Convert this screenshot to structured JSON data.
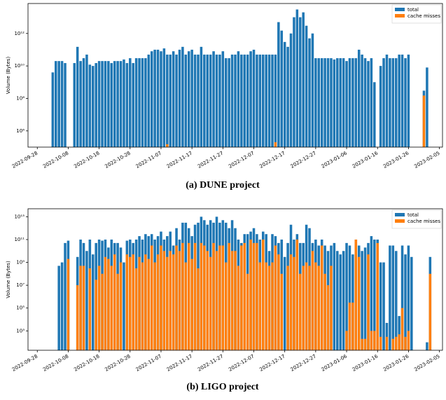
{
  "chart_data": [
    {
      "type": "bar",
      "log": true,
      "caption": "(a) DUNE project",
      "ylabel": "Volume (Bytes)",
      "legend": "upper right",
      "x": [
        "2022-10-03",
        "2022-10-04",
        "2022-10-05",
        "2022-10-06",
        "2022-10-07",
        "2022-10-08",
        "2022-10-09",
        "2022-10-10",
        "2022-10-11",
        "2022-10-12",
        "2022-10-13",
        "2022-10-14",
        "2022-10-15",
        "2022-10-16",
        "2022-10-17",
        "2022-10-18",
        "2022-10-19",
        "2022-10-20",
        "2022-10-21",
        "2022-10-22",
        "2022-10-23",
        "2022-10-24",
        "2022-10-25",
        "2022-10-26",
        "2022-10-27",
        "2022-10-28",
        "2022-10-29",
        "2022-10-30",
        "2022-10-31",
        "2022-11-01",
        "2022-11-02",
        "2022-11-03",
        "2022-11-04",
        "2022-11-05",
        "2022-11-06",
        "2022-11-07",
        "2022-11-08",
        "2022-11-09",
        "2022-11-10",
        "2022-11-11",
        "2022-11-12",
        "2022-11-13",
        "2022-11-14",
        "2022-11-15",
        "2022-11-16",
        "2022-11-17",
        "2022-11-18",
        "2022-11-19",
        "2022-11-20",
        "2022-11-21",
        "2022-11-22",
        "2022-11-23",
        "2022-11-24",
        "2022-11-25",
        "2022-11-26",
        "2022-11-27",
        "2022-11-28",
        "2022-11-29",
        "2022-11-30",
        "2022-12-01",
        "2022-12-02",
        "2022-12-03",
        "2022-12-04",
        "2022-12-05",
        "2022-12-06",
        "2022-12-07",
        "2022-12-08",
        "2022-12-09",
        "2022-12-10",
        "2022-12-11",
        "2022-12-12",
        "2022-12-13",
        "2022-12-14",
        "2022-12-15",
        "2022-12-16",
        "2022-12-17",
        "2022-12-18",
        "2022-12-19",
        "2022-12-20",
        "2022-12-21",
        "2022-12-22",
        "2022-12-23",
        "2022-12-24",
        "2022-12-25",
        "2022-12-26",
        "2022-12-27",
        "2022-12-28",
        "2022-12-29",
        "2022-12-30",
        "2022-12-31",
        "2023-01-01",
        "2023-01-02",
        "2023-01-03",
        "2023-01-04",
        "2023-01-05",
        "2023-01-06",
        "2023-01-07",
        "2023-01-08",
        "2023-01-09",
        "2023-01-10",
        "2023-01-11",
        "2023-01-12",
        "2023-01-13",
        "2023-01-14",
        "2023-01-15",
        "2023-01-16",
        "2023-01-17",
        "2023-01-18",
        "2023-01-19",
        "2023-01-20",
        "2023-01-21",
        "2023-01-22",
        "2023-01-23",
        "2023-01-24",
        "2023-01-25",
        "2023-01-26",
        "2023-01-27",
        "2023-01-28",
        "2023-01-29",
        "2023-01-30",
        "2023-01-31",
        "2023-02-01",
        "2023-02-02"
      ],
      "series": [
        {
          "name": "total",
          "color": "#1f77b4",
          "values": [
            4000000000.0,
            20000000000.0,
            20000000000.0,
            20000000000.0,
            15000000000.0,
            null,
            null,
            15000000000.0,
            150000000000.0,
            20000000000.0,
            30000000000.0,
            50000000000.0,
            12000000000.0,
            10000000000.0,
            15000000000.0,
            20000000000.0,
            20000000000.0,
            20000000000.0,
            20000000000.0,
            15000000000.0,
            20000000000.0,
            20000000000.0,
            20000000000.0,
            25000000000.0,
            15000000000.0,
            30000000000.0,
            15000000000.0,
            30000000000.0,
            30000000000.0,
            30000000000.0,
            30000000000.0,
            50000000000.0,
            80000000000.0,
            100000000000.0,
            100000000000.0,
            80000000000.0,
            120000000000.0,
            50000000000.0,
            50000000000.0,
            80000000000.0,
            50000000000.0,
            100000000000.0,
            150000000000.0,
            50000000000.0,
            80000000000.0,
            100000000000.0,
            50000000000.0,
            50000000000.0,
            150000000000.0,
            50000000000.0,
            50000000000.0,
            50000000000.0,
            80000000000.0,
            50000000000.0,
            50000000000.0,
            80000000000.0,
            30000000000.0,
            30000000000.0,
            50000000000.0,
            50000000000.0,
            80000000000.0,
            50000000000.0,
            50000000000.0,
            50000000000.0,
            80000000000.0,
            100000000000.0,
            50000000000.0,
            50000000000.0,
            50000000000.0,
            50000000000.0,
            50000000000.0,
            50000000000.0,
            50000000000.0,
            5000000000000.0,
            1500000000000.0,
            300000000000.0,
            150000000000.0,
            1000000000000.0,
            10000000000000.0,
            30000000000000.0,
            10000000000000.0,
            20000000000000.0,
            3000000000000.0,
            500000000000.0,
            1000000000000.0,
            30000000000.0,
            30000000000.0,
            30000000000.0,
            30000000000.0,
            30000000000.0,
            30000000000.0,
            25000000000.0,
            30000000000.0,
            30000000000.0,
            30000000000.0,
            20000000000.0,
            30000000000.0,
            30000000000.0,
            30000000000.0,
            100000000000.0,
            50000000000.0,
            30000000000.0,
            20000000000.0,
            30000000000.0,
            1000000000.0,
            null,
            10000000000.0,
            30000000000.0,
            50000000000.0,
            30000000000.0,
            30000000000.0,
            30000000000.0,
            50000000000.0,
            50000000000.0,
            30000000000.0,
            50000000000.0,
            null,
            null,
            null,
            null,
            300000000.0,
            8000000000.0,
            null
          ]
        },
        {
          "name": "cache misses",
          "color": "#ff7f0e",
          "values": [
            null,
            null,
            null,
            null,
            null,
            null,
            null,
            null,
            null,
            null,
            null,
            null,
            null,
            null,
            null,
            null,
            null,
            null,
            null,
            null,
            null,
            null,
            null,
            null,
            null,
            null,
            null,
            null,
            null,
            null,
            null,
            null,
            null,
            null,
            null,
            null,
            null,
            150000.0,
            null,
            null,
            null,
            null,
            null,
            null,
            null,
            null,
            null,
            null,
            null,
            null,
            null,
            null,
            null,
            null,
            null,
            null,
            null,
            null,
            null,
            null,
            null,
            null,
            null,
            null,
            null,
            null,
            null,
            null,
            null,
            null,
            null,
            null,
            200000.0,
            null,
            null,
            null,
            null,
            null,
            null,
            null,
            null,
            null,
            null,
            null,
            null,
            null,
            null,
            null,
            null,
            null,
            null,
            null,
            null,
            null,
            null,
            null,
            null,
            null,
            null,
            null,
            null,
            null,
            null,
            null,
            null,
            null,
            null,
            null,
            null,
            null,
            null,
            null,
            null,
            null,
            null,
            null,
            null,
            null,
            null,
            null,
            150000000.0,
            null,
            null
          ]
        }
      ],
      "xlim": [
        "2022-09-25",
        "2023-02-06"
      ],
      "xticks": [
        "2022-09-28",
        "2022-10-08",
        "2022-10-18",
        "2022-10-28",
        "2022-11-07",
        "2022-11-17",
        "2022-11-27",
        "2022-12-07",
        "2022-12-17",
        "2022-12-27",
        "2023-01-06",
        "2023-01-16",
        "2023-01-26",
        "2023-02-05"
      ],
      "ylim": [
        100000.0,
        70000000000000.0
      ],
      "yticks": [
        {
          "value": 1000000.0,
          "label": "10⁶"
        },
        {
          "value": 100000000.0,
          "label": "10⁸"
        },
        {
          "value": 10000000000.0,
          "label": "10¹⁰"
        },
        {
          "value": 1000000000000.0,
          "label": "10¹²"
        }
      ]
    },
    {
      "type": "bar",
      "log": true,
      "caption": "(b) LIGO project",
      "ylabel": "Volume (Bytes)",
      "legend": "upper right",
      "x": [
        "2022-10-03",
        "2022-10-04",
        "2022-10-05",
        "2022-10-06",
        "2022-10-07",
        "2022-10-08",
        "2022-10-09",
        "2022-10-10",
        "2022-10-11",
        "2022-10-12",
        "2022-10-13",
        "2022-10-14",
        "2022-10-15",
        "2022-10-16",
        "2022-10-17",
        "2022-10-18",
        "2022-10-19",
        "2022-10-20",
        "2022-10-21",
        "2022-10-22",
        "2022-10-23",
        "2022-10-24",
        "2022-10-25",
        "2022-10-26",
        "2022-10-27",
        "2022-10-28",
        "2022-10-29",
        "2022-10-30",
        "2022-10-31",
        "2022-11-01",
        "2022-11-02",
        "2022-11-03",
        "2022-11-04",
        "2022-11-05",
        "2022-11-06",
        "2022-11-07",
        "2022-11-08",
        "2022-11-09",
        "2022-11-10",
        "2022-11-11",
        "2022-11-12",
        "2022-11-13",
        "2022-11-14",
        "2022-11-15",
        "2022-11-16",
        "2022-11-17",
        "2022-11-18",
        "2022-11-19",
        "2022-11-20",
        "2022-11-21",
        "2022-11-22",
        "2022-11-23",
        "2022-11-24",
        "2022-11-25",
        "2022-11-26",
        "2022-11-27",
        "2022-11-28",
        "2022-11-29",
        "2022-11-30",
        "2022-12-01",
        "2022-12-02",
        "2022-12-03",
        "2022-12-04",
        "2022-12-05",
        "2022-12-06",
        "2022-12-07",
        "2022-12-08",
        "2022-12-09",
        "2022-12-10",
        "2022-12-11",
        "2022-12-12",
        "2022-12-13",
        "2022-12-14",
        "2022-12-15",
        "2022-12-16",
        "2022-12-17",
        "2022-12-18",
        "2022-12-19",
        "2022-12-20",
        "2022-12-21",
        "2022-12-22",
        "2022-12-23",
        "2022-12-24",
        "2022-12-25",
        "2022-12-26",
        "2022-12-27",
        "2022-12-28",
        "2022-12-29",
        "2022-12-30",
        "2022-12-31",
        "2023-01-01",
        "2023-01-02",
        "2023-01-03",
        "2023-01-04",
        "2023-01-05",
        "2023-01-06",
        "2023-01-07",
        "2023-01-08",
        "2023-01-09",
        "2023-01-10",
        "2023-01-11",
        "2023-01-12",
        "2023-01-13",
        "2023-01-14",
        "2023-01-15",
        "2023-01-16",
        "2023-01-17",
        "2023-01-18",
        "2023-01-19",
        "2023-01-20",
        "2023-01-21",
        "2023-01-22",
        "2023-01-23",
        "2023-01-24",
        "2023-01-25",
        "2023-01-26",
        "2023-01-27",
        "2023-01-28",
        "2023-01-29",
        "2023-01-30",
        "2023-01-31",
        "2023-02-01",
        "2023-02-02"
      ],
      "series": [
        {
          "name": "total",
          "color": "#1f77b4",
          "values": [
            null,
            null,
            500000000.0,
            1000000000.0,
            50000000000.0,
            80000000000.0,
            null,
            null,
            3000000000.0,
            100000000000.0,
            50000000000.0,
            10000000000.0,
            100000000000.0,
            5000000000.0,
            50000000000.0,
            100000000000.0,
            80000000000.0,
            100000000000.0,
            20000000000.0,
            100000000000.0,
            50000000000.0,
            50000000000.0,
            20000000000.0,
            1000000000.0,
            80000000000.0,
            100000000000.0,
            50000000000.0,
            100000000000.0,
            200000000000.0,
            100000000000.0,
            300000000000.0,
            200000000000.0,
            300000000000.0,
            100000000000.0,
            200000000000.0,
            500000000000.0,
            100000000000.0,
            200000000000.0,
            500000000000.0,
            30000000000.0,
            1000000000000.0,
            100000000000.0,
            3000000000000.0,
            3000000000000.0,
            1000000000000.0,
            200000000000.0,
            2000000000000.0,
            3000000000000.0,
            10000000000000.0,
            5000000000000.0,
            2000000000000.0,
            5000000000000.0,
            3000000000000.0,
            10000000000000.0,
            3000000000000.0,
            5000000000000.0,
            3000000000000.0,
            1000000000000.0,
            5000000000000.0,
            1000000000000.0,
            100000000000.0,
            50000000000.0,
            300000000000.0,
            300000000000.0,
            500000000000.0,
            1000000000000.0,
            300000000000.0,
            100000000000.0,
            500000000000.0,
            300000000000.0,
            10000000000.0,
            300000000000.0,
            200000000000.0,
            50000000000.0,
            100000000000.0,
            3000000000.0,
            50000000000.0,
            2000000000000.0,
            100000000000.0,
            300000000000.0,
            50000000000.0,
            50000000000.0,
            2000000000000.0,
            1000000000000.0,
            50000000000.0,
            100000000000.0,
            30000000000.0,
            100000000000.0,
            30000000000.0,
            10000000000.0,
            30000000000.0,
            50000000000.0,
            10000000000.0,
            5000000000.0,
            10000000000.0,
            50000000000.0,
            30000000000.0,
            5000000000.0,
            100000000000.0,
            30000000000.0,
            10000000000.0,
            20000000000.0,
            50000000000.0,
            200000000000.0,
            100000000000.0,
            100000000000.0,
            1000000000.0,
            1000000000.0,
            5000.0,
            30000000000.0,
            30000000000.0,
            10000000000.0,
            20000.0,
            30000000000.0,
            5000000000.0,
            30000000000.0,
            3000000000.0,
            null,
            null,
            null,
            null,
            100,
            3000000000.0
          ]
        },
        {
          "name": "cache misses",
          "color": "#ff7f0e",
          "values": [
            null,
            null,
            null,
            null,
            null,
            2000000000.0,
            null,
            null,
            10000000.0,
            500000000.0,
            500000000.0,
            null,
            300000000.0,
            null,
            30000000.0,
            500000000.0,
            100000000.0,
            3000000000.0,
            2000000000.0,
            500000000.0,
            5000000000.0,
            100000000.0,
            1000000000.0,
            null,
            5000000000.0,
            3000000000.0,
            5000000000.0,
            300000000.0,
            3000000000.0,
            1000000000.0,
            5000000000.0,
            2000000000.0,
            30000000000.0,
            1000000000.0,
            5000000000.0,
            30000000000.0,
            10000000000.0,
            3000000000.0,
            10000000000.0,
            5000000000.0,
            30000000000.0,
            10000000000.0,
            50000000000.0,
            1000000000.0,
            50000000000.0,
            2000000000.0,
            50000000000.0,
            300000000.0,
            50000000000.0,
            30000000000.0,
            10000000000.0,
            3000000000.0,
            50000000000.0,
            10000000000.0,
            30000000000.0,
            30000000000.0,
            1000000000.0,
            50000000000.0,
            10000000000.0,
            10000000000.0,
            500000000.0,
            30000000000.0,
            50000000000.0,
            100000000.0,
            100000000000.0,
            50000000000.0,
            50000000000.0,
            1000000000.0,
            100000000000.0,
            1000000000.0,
            500000000.0,
            1000000000.0,
            30000000000.0,
            5000000000.0,
            100000000.0,
            null,
            500000000.0,
            5000000000.0,
            3000000000.0,
            100000000000.0,
            100000000.0,
            500000000.0,
            1000000000.0,
            500000000.0,
            10000000000.0,
            1000000000.0,
            500000000.0,
            30000000000.0,
            100000000.0,
            10000000.0,
            500000000.0,
            null,
            null,
            null,
            null,
            1000,
            300000.0,
            300000.0,
            100000000000.0,
            3000000000.0,
            200,
            200,
            5000000000.0,
            1000,
            1000,
            50000000000.0,
            300,
            null,
            300,
            null,
            200,
            300,
            500,
            100000.0,
            300,
            1000,
            null,
            null,
            null,
            null,
            null,
            null,
            100000000.0
          ]
        }
      ],
      "xlim": [
        "2022-09-25",
        "2023-02-06"
      ],
      "xticks": [
        "2022-09-28",
        "2022-10-08",
        "2022-10-18",
        "2022-10-28",
        "2022-11-07",
        "2022-11-17",
        "2022-11-27",
        "2022-12-07",
        "2022-12-17",
        "2022-12-27",
        "2023-01-06",
        "2023-01-16",
        "2023-01-26",
        "2023-02-05"
      ],
      "ylim": [
        20,
        50000000000000.0
      ],
      "yticks": [
        {
          "value": 1000.0,
          "label": "10³"
        },
        {
          "value": 100000.0,
          "label": "10⁵"
        },
        {
          "value": 10000000.0,
          "label": "10⁷"
        },
        {
          "value": 1000000000.0,
          "label": "10⁹"
        },
        {
          "value": 100000000000.0,
          "label": "10¹¹"
        },
        {
          "value": 10000000000000.0,
          "label": "10¹³"
        }
      ]
    }
  ]
}
